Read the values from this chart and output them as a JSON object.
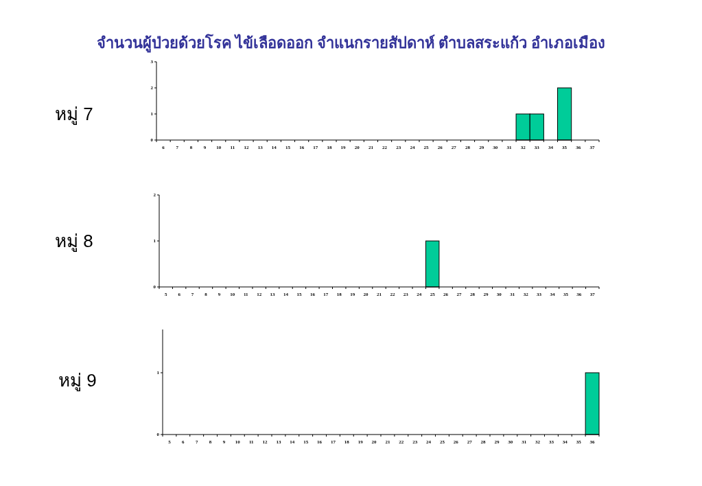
{
  "chart_data": [
    {
      "type": "bar",
      "title": "จำนวนผู้ป่วยด้วยโรค ไข้เลือดออก จำแนกรายสัปดาห์ ตำบลสระแก้ว อำเภอเมือง",
      "ylabel": "หมู่ 7",
      "color": "#00cc99",
      "ylim": [
        0,
        3
      ],
      "yticks": [
        0,
        1,
        2,
        3
      ],
      "categories": [
        "6",
        "7",
        "8",
        "9",
        "10",
        "11",
        "12",
        "13",
        "14",
        "15",
        "16",
        "17",
        "18",
        "19",
        "20",
        "21",
        "22",
        "23",
        "24",
        "25",
        "26",
        "27",
        "28",
        "29",
        "30",
        "31",
        "32",
        "33",
        "34",
        "35",
        "36",
        "37"
      ],
      "values": [
        0,
        0,
        0,
        0,
        0,
        0,
        0,
        0,
        0,
        0,
        0,
        0,
        0,
        0,
        0,
        0,
        0,
        0,
        0,
        0,
        0,
        0,
        0,
        0,
        0,
        0,
        1,
        1,
        0,
        2,
        0,
        0
      ]
    },
    {
      "type": "bar",
      "ylabel": "หมู่ 8",
      "color": "#00cc99",
      "ylim": [
        0,
        2
      ],
      "yticks": [
        0,
        1,
        2
      ],
      "categories": [
        "5",
        "6",
        "7",
        "8",
        "9",
        "10",
        "11",
        "12",
        "13",
        "14",
        "15",
        "16",
        "17",
        "18",
        "19",
        "20",
        "21",
        "22",
        "23",
        "24",
        "25",
        "26",
        "27",
        "28",
        "29",
        "30",
        "31",
        "32",
        "33",
        "34",
        "35",
        "36",
        "37"
      ],
      "values": [
        0,
        0,
        0,
        0,
        0,
        0,
        0,
        0,
        0,
        0,
        0,
        0,
        0,
        0,
        0,
        0,
        0,
        0,
        0,
        0,
        1,
        0,
        0,
        0,
        0,
        0,
        0,
        0,
        0,
        0,
        0,
        0,
        0
      ]
    },
    {
      "type": "bar",
      "ylabel": "หมู่ 9",
      "color": "#00cc99",
      "ylim": [
        0,
        1.7
      ],
      "yticks": [
        0,
        1
      ],
      "categories": [
        "5",
        "6",
        "7",
        "8",
        "9",
        "10",
        "11",
        "12",
        "13",
        "14",
        "15",
        "16",
        "17",
        "18",
        "19",
        "20",
        "21",
        "22",
        "23",
        "24",
        "25",
        "26",
        "27",
        "28",
        "29",
        "30",
        "31",
        "32",
        "33",
        "34",
        "35",
        "36"
      ],
      "values": [
        0,
        0,
        0,
        0,
        0,
        0,
        0,
        0,
        0,
        0,
        0,
        0,
        0,
        0,
        0,
        0,
        0,
        0,
        0,
        0,
        0,
        0,
        0,
        0,
        0,
        0,
        0,
        0,
        0,
        0,
        0,
        1
      ]
    }
  ]
}
